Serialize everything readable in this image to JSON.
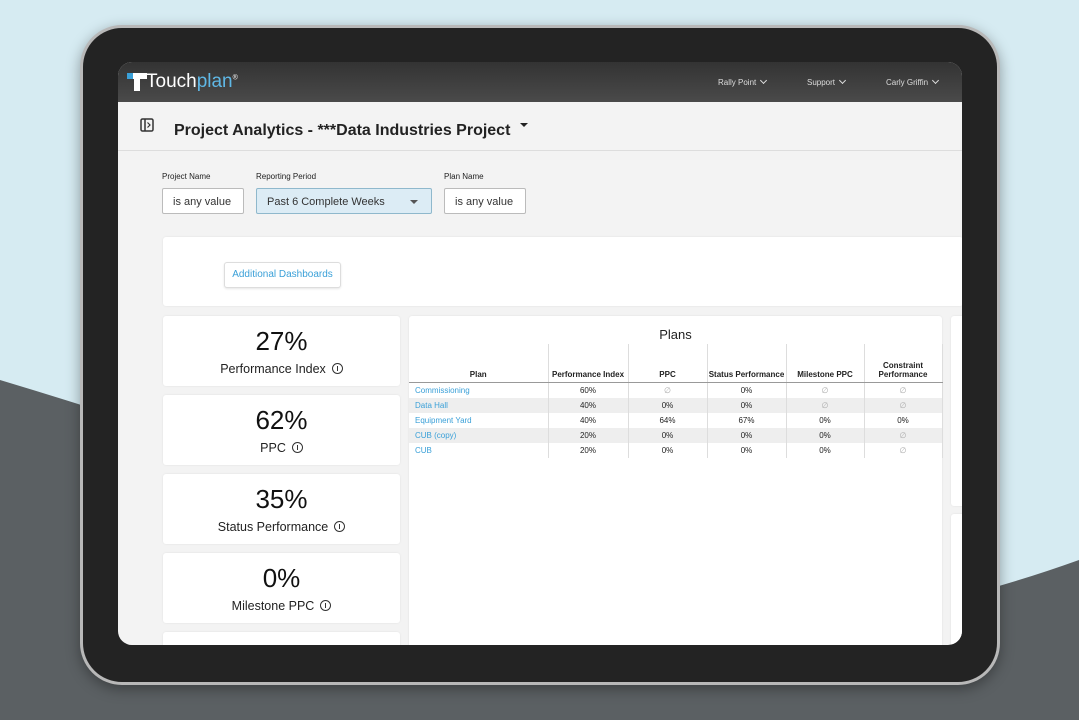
{
  "header": {
    "brand": {
      "first": "Touch",
      "second": "plan",
      "mark": "®"
    },
    "nav": [
      "Rally Point",
      "Support",
      "Carly Griffin"
    ]
  },
  "page": {
    "title": "Project Analytics - ***Data Industries Project"
  },
  "filters": [
    {
      "label": "Project Name",
      "value": "is any value"
    },
    {
      "label": "Reporting Period",
      "value": "Past 6 Complete Weeks"
    },
    {
      "label": "Plan Name",
      "value": "is any value"
    }
  ],
  "button": "Additional Dashboards",
  "kpis": [
    {
      "value": "27%",
      "label": "Performance Index"
    },
    {
      "value": "62%",
      "label": "PPC"
    },
    {
      "value": "35%",
      "label": "Status Performance"
    },
    {
      "value": "0%",
      "label": "Milestone PPC"
    }
  ],
  "table": {
    "title": "Plans",
    "columns": [
      "Plan",
      "Performance Index",
      "PPC",
      "Status Performance",
      "Milestone PPC",
      "Constraint Performance"
    ],
    "rows": [
      [
        "Commissioning",
        "60%",
        "∅",
        "0%",
        "∅",
        "∅"
      ],
      [
        "Data Hall",
        "40%",
        "0%",
        "0%",
        "∅",
        "∅"
      ],
      [
        "Equipment Yard",
        "40%",
        "64%",
        "67%",
        "0%",
        "0%"
      ],
      [
        "CUB (copy)",
        "20%",
        "0%",
        "0%",
        "0%",
        "∅"
      ],
      [
        "CUB",
        "20%",
        "0%",
        "0%",
        "0%",
        "∅"
      ]
    ]
  }
}
